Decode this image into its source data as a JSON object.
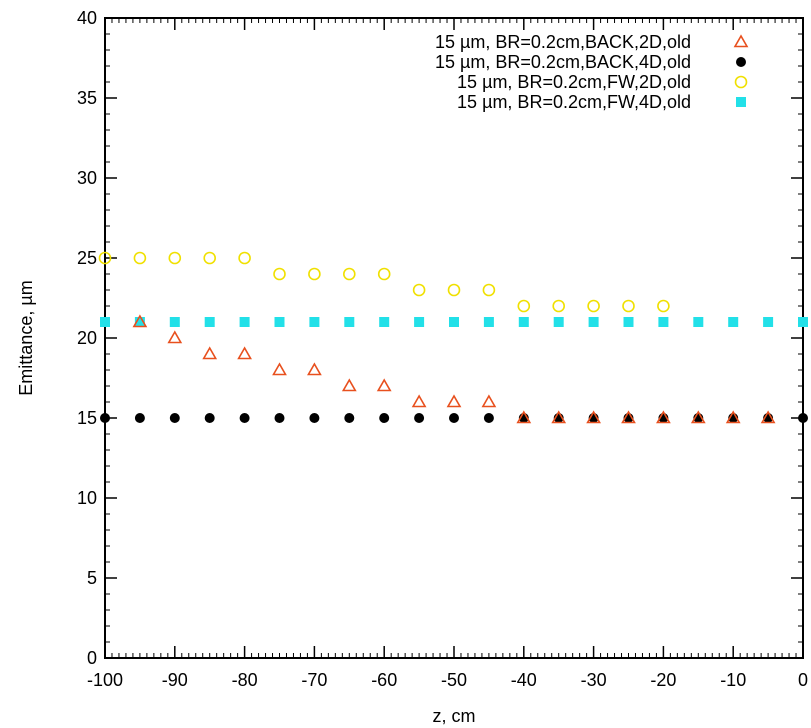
{
  "chart_data": {
    "type": "scatter",
    "xlabel": "z, cm",
    "ylabel": "Emittance, µm",
    "xlim": [
      -100,
      0
    ],
    "ylim": [
      0,
      40
    ],
    "x_ticks": [
      -100,
      -90,
      -80,
      -70,
      -60,
      -50,
      -40,
      -30,
      -20,
      -10,
      0
    ],
    "y_ticks": [
      0,
      5,
      10,
      15,
      20,
      25,
      30,
      35,
      40
    ],
    "x_tick_labels": [
      "-100",
      "-90",
      "-80",
      "-70",
      "-60",
      "-50",
      "-40",
      "-30",
      "-20",
      "-10",
      "0"
    ],
    "y_tick_labels": [
      "0",
      "5",
      "10",
      "15",
      "20",
      "25",
      "30",
      "35",
      "40"
    ],
    "grid": false,
    "legend_position": "top-right",
    "series": [
      {
        "name": "15 µm, BR=0.2cm,BACK,2D,old",
        "marker": "triangle-open",
        "color": "#e8501e",
        "x": [
          -95,
          -90,
          -85,
          -80,
          -75,
          -70,
          -65,
          -60,
          -55,
          -50,
          -45,
          -40,
          -35,
          -30,
          -25,
          -20,
          -15,
          -10,
          -5
        ],
        "y": [
          21,
          20,
          19,
          19,
          18,
          18,
          17,
          17,
          16,
          16,
          16,
          15,
          15,
          15,
          15,
          15,
          15,
          15,
          15
        ]
      },
      {
        "name": "15 µm, BR=0.2cm,BACK,4D,old",
        "marker": "circle-filled",
        "color": "#000000",
        "x": [
          -100,
          -95,
          -90,
          -85,
          -80,
          -75,
          -70,
          -65,
          -60,
          -55,
          -50,
          -45,
          -40,
          -35,
          -30,
          -25,
          -20,
          -15,
          -10,
          -5,
          0
        ],
        "y": [
          15,
          15,
          15,
          15,
          15,
          15,
          15,
          15,
          15,
          15,
          15,
          15,
          15,
          15,
          15,
          15,
          15,
          15,
          15,
          15,
          15
        ]
      },
      {
        "name": "15 µm, BR=0.2cm,FW,2D,old",
        "marker": "circle-open",
        "color": "#f0e000",
        "x": [
          -100,
          -95,
          -90,
          -85,
          -80,
          -75,
          -70,
          -65,
          -60,
          -55,
          -50,
          -45,
          -40,
          -35,
          -30,
          -25,
          -20
        ],
        "y": [
          25,
          25,
          25,
          25,
          25,
          24,
          24,
          24,
          24,
          23,
          23,
          23,
          22,
          22,
          22,
          22,
          22
        ]
      },
      {
        "name": "15 µm, BR=0.2cm,FW,4D,old",
        "marker": "square-filled",
        "color": "#22e0e8",
        "x": [
          -100,
          -95,
          -90,
          -85,
          -80,
          -75,
          -70,
          -65,
          -60,
          -55,
          -50,
          -45,
          -40,
          -35,
          -30,
          -25,
          -20,
          -15,
          -10,
          -5,
          0
        ],
        "y": [
          21,
          21,
          21,
          21,
          21,
          21,
          21,
          21,
          21,
          21,
          21,
          21,
          21,
          21,
          21,
          21,
          21,
          21,
          21,
          21,
          21
        ]
      }
    ]
  }
}
